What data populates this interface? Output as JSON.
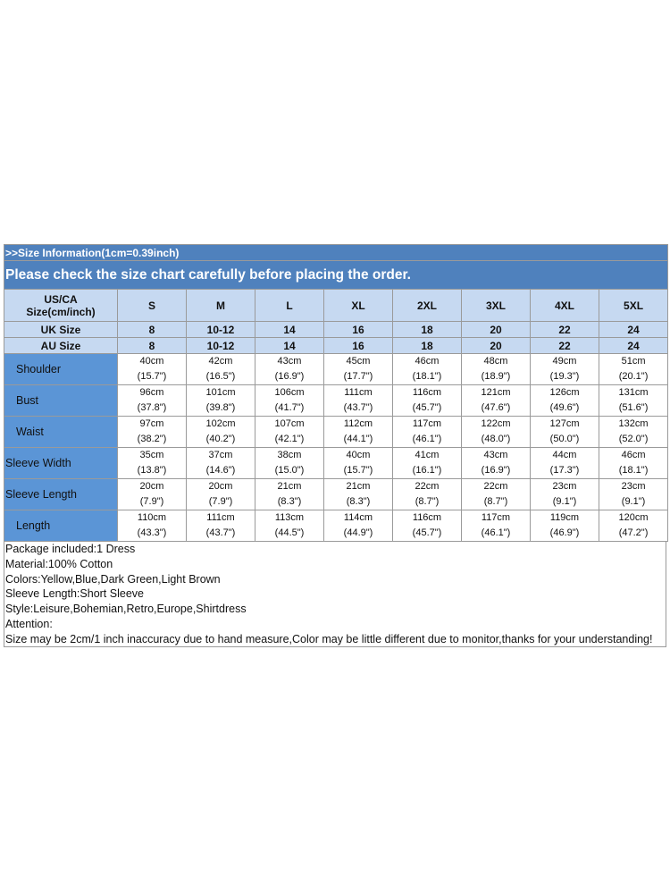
{
  "header": {
    "info": ">>Size Information(1cm=0.39inch)",
    "notice": "Please check the size chart carefully before placing the order."
  },
  "table": {
    "corner": [
      "US/CA",
      "Size(cm/inch)"
    ],
    "sizes": [
      "S",
      "M",
      "L",
      "XL",
      "2XL",
      "3XL",
      "4XL",
      "5XL"
    ],
    "conversions": [
      {
        "label": "UK Size",
        "values": [
          "8",
          "10-12",
          "14",
          "16",
          "18",
          "20",
          "22",
          "24"
        ]
      },
      {
        "label": "AU Size",
        "values": [
          "8",
          "10-12",
          "14",
          "16",
          "18",
          "20",
          "22",
          "24"
        ]
      }
    ],
    "rows": [
      {
        "label": "Shoulder",
        "cells": [
          [
            "40cm",
            "(15.7\")"
          ],
          [
            "42cm",
            "(16.5\")"
          ],
          [
            "43cm",
            "(16.9\")"
          ],
          [
            "45cm",
            "(17.7\")"
          ],
          [
            "46cm",
            "(18.1\")"
          ],
          [
            "48cm",
            "(18.9\")"
          ],
          [
            "49cm",
            "(19.3\")"
          ],
          [
            "51cm",
            "(20.1\")"
          ]
        ]
      },
      {
        "label": "Bust",
        "cells": [
          [
            "96cm",
            "(37.8\")"
          ],
          [
            "101cm",
            "(39.8\")"
          ],
          [
            "106cm",
            "(41.7\")"
          ],
          [
            "111cm",
            "(43.7\")"
          ],
          [
            "116cm",
            "(45.7\")"
          ],
          [
            "121cm",
            "(47.6\")"
          ],
          [
            "126cm",
            "(49.6\")"
          ],
          [
            "131cm",
            "(51.6\")"
          ]
        ]
      },
      {
        "label": "Waist",
        "cells": [
          [
            "97cm",
            "(38.2\")"
          ],
          [
            "102cm",
            "(40.2\")"
          ],
          [
            "107cm",
            "(42.1\")"
          ],
          [
            "112cm",
            "(44.1\")"
          ],
          [
            "117cm",
            "(46.1\")"
          ],
          [
            "122cm",
            "(48.0\")"
          ],
          [
            "127cm",
            "(50.0\")"
          ],
          [
            "132cm",
            "(52.0\")"
          ]
        ]
      },
      {
        "label": "Sleeve Width",
        "cells": [
          [
            "35cm",
            "(13.8\")"
          ],
          [
            "37cm",
            "(14.6\")"
          ],
          [
            "38cm",
            "(15.0\")"
          ],
          [
            "40cm",
            "(15.7\")"
          ],
          [
            "41cm",
            "(16.1\")"
          ],
          [
            "43cm",
            "(16.9\")"
          ],
          [
            "44cm",
            "(17.3\")"
          ],
          [
            "46cm",
            "(18.1\")"
          ]
        ]
      },
      {
        "label": "Sleeve Length",
        "cells": [
          [
            "20cm",
            "(7.9\")"
          ],
          [
            "20cm",
            "(7.9\")"
          ],
          [
            "21cm",
            "(8.3\")"
          ],
          [
            "21cm",
            "(8.3\")"
          ],
          [
            "22cm",
            "(8.7\")"
          ],
          [
            "22cm",
            "(8.7\")"
          ],
          [
            "23cm",
            "(9.1\")"
          ],
          [
            "23cm",
            "(9.1\")"
          ]
        ]
      },
      {
        "label": "Length",
        "cells": [
          [
            "110cm",
            "(43.3\")"
          ],
          [
            "111cm",
            "(43.7\")"
          ],
          [
            "113cm",
            "(44.5\")"
          ],
          [
            "114cm",
            "(44.9\")"
          ],
          [
            "116cm",
            "(45.7\")"
          ],
          [
            "117cm",
            "(46.1\")"
          ],
          [
            "119cm",
            "(46.9\")"
          ],
          [
            "120cm",
            "(47.2\")"
          ]
        ]
      }
    ]
  },
  "notes": [
    "Package included:1 Dress",
    "Material:100% Cotton",
    "Colors:Yellow,Blue,Dark Green,Light Brown",
    "Sleeve Length:Short Sleeve",
    "Style:Leisure,Bohemian,Retro,Europe,Shirtdress",
    "Attention:",
    "Size may be 2cm/1 inch inaccuracy due to hand measure,Color may be little different due to monitor,thanks for your understanding!"
  ]
}
